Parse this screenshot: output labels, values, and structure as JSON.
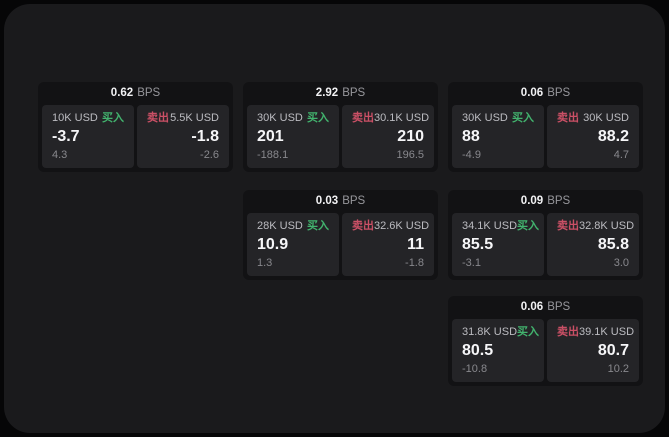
{
  "labels": {
    "bps_unit": "BPS",
    "buy": "买入",
    "sell": "卖出"
  },
  "colors": {
    "buy_accent": "#42b36e",
    "sell_accent": "#cb5066",
    "panel_bg": "#1a1a1c",
    "card_bg": "#121214",
    "tile_bg": "#242427"
  },
  "cards": [
    {
      "slot": "r1c1",
      "bps": "0.62",
      "buy": {
        "size": "10K USD",
        "value": "-3.7",
        "sub": "4.3"
      },
      "sell": {
        "size": "5.5K USD",
        "value": "-1.8",
        "sub": "-2.6"
      }
    },
    {
      "slot": "r1c2",
      "bps": "2.92",
      "buy": {
        "size": "30K USD",
        "value": "201",
        "sub": "-188.1"
      },
      "sell": {
        "size": "30.1K USD",
        "value": "210",
        "sub": "196.5"
      }
    },
    {
      "slot": "r1c3",
      "bps": "0.06",
      "buy": {
        "size": "30K USD",
        "value": "88",
        "sub": "-4.9"
      },
      "sell": {
        "size": "30K USD",
        "value": "88.2",
        "sub": "4.7"
      }
    },
    {
      "slot": "r2c2",
      "bps": "0.03",
      "buy": {
        "size": "28K USD",
        "value": "10.9",
        "sub": "1.3"
      },
      "sell": {
        "size": "32.6K USD",
        "value": "11",
        "sub": "-1.8"
      }
    },
    {
      "slot": "r2c3",
      "bps": "0.09",
      "buy": {
        "size": "34.1K USD",
        "value": "85.5",
        "sub": "-3.1"
      },
      "sell": {
        "size": "32.8K USD",
        "value": "85.8",
        "sub": "3.0"
      }
    },
    {
      "slot": "r3c3",
      "bps": "0.06",
      "buy": {
        "size": "31.8K USD",
        "value": "80.5",
        "sub": "-10.8"
      },
      "sell": {
        "size": "39.1K USD",
        "value": "80.7",
        "sub": "10.2"
      }
    }
  ]
}
